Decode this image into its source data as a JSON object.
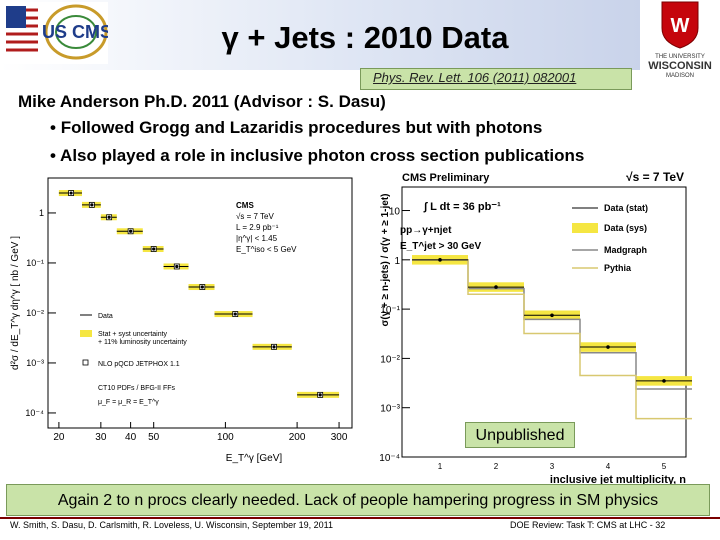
{
  "slide": {
    "title": "γ + Jets : 2010 Data",
    "reference": "Phys. Rev. Lett. 106 (2011) 082001",
    "author_line": "Mike Anderson Ph.D. 2011 (Advisor : S. Dasu)",
    "bullets": [
      "Followed Grogg and Lazaridis procedures but with photons",
      "Also played a role in inclusive photon cross section publications"
    ],
    "unpublished_label": "Unpublished",
    "conclusion": "Again 2 to n procs clearly needed. Lack of people hampering progress in SM physics",
    "footer_left": "W. Smith, S. Dasu, D. Carlsmith, R. Loveless, U. Wisconsin, September 19, 2011",
    "footer_right": "DOE Review: Task T: CMS at LHC - 32",
    "logos": {
      "cms_text": "US CMS",
      "uw_line1": "THE UNIVERSITY",
      "uw_line2": "WISCONSIN",
      "uw_line3": "MADISON"
    }
  },
  "chart_data": [
    {
      "type": "scatter",
      "xscale": "log",
      "yscale": "log",
      "xlabel": "E_T^γ [GeV]",
      "ylabel": "d²σ / dE_T^γ dη^γ [ nb / GeV ]",
      "xticks": [
        "20",
        "30",
        "40",
        "50",
        "100",
        "200",
        "300"
      ],
      "yticks": [
        "1",
        "10⁻¹",
        "10⁻²",
        "10⁻³",
        "10⁻⁴"
      ],
      "xlim": [
        18,
        340
      ],
      "ylim": [
        5e-05,
        5
      ],
      "annotations": [
        "CMS",
        "√s = 7 TeV",
        "L = 2.9 pb⁻¹",
        "|η^γ| < 1.45",
        "E_T^iso < 5 GeV"
      ],
      "legend": [
        "Data",
        "Stat + syst uncertainty",
        "+ 11% luminosity uncertainty",
        "NLO pQCD JETPHOX 1.1",
        "CT10 PDFs / BFG-II FFs",
        "μ_F = μ_R = E_T^γ"
      ],
      "series": [
        {
          "name": "Data",
          "x": [
            22.5,
            27.5,
            32.5,
            40,
            50,
            62.5,
            80,
            110,
            160,
            250
          ],
          "y": [
            2.5,
            1.45,
            0.82,
            0.43,
            0.19,
            0.085,
            0.033,
            0.0095,
            0.0021,
            0.00023
          ],
          "xerr": [
            2.5,
            2.5,
            2.5,
            5,
            5,
            7.5,
            10,
            20,
            30,
            50
          ]
        }
      ]
    },
    {
      "type": "bar",
      "yscale": "log",
      "xlabel": "inclusive jet multiplicity, n",
      "ylabel": "σ(γ + ≥ n-jets) / σ(γ + ≥ 1-jet)",
      "title": "CMS Preliminary",
      "annotations": [
        "√s = 7 TeV",
        "∫ L dt = 36 pb⁻¹",
        "pp→γ+njet",
        "E_T^jet > 30 GeV"
      ],
      "categories": [
        "1",
        "2",
        "3",
        "4",
        "5"
      ],
      "yticks": [
        "10⁻⁴",
        "10⁻³",
        "10⁻²",
        "10⁻¹",
        "1",
        "10"
      ],
      "ylim": [
        0.0001,
        30
      ],
      "series": [
        {
          "name": "Data (stat)",
          "values": [
            1.0,
            0.28,
            0.075,
            0.017,
            0.0035
          ]
        },
        {
          "name": "Data (sys)",
          "values": [
            1.0,
            0.28,
            0.075,
            0.017,
            0.0035
          ]
        },
        {
          "name": "Madgraph",
          "values": [
            1.0,
            0.26,
            0.062,
            0.013,
            0.0024
          ]
        },
        {
          "name": "Pythia",
          "values": [
            1.0,
            0.2,
            0.032,
            0.0045,
            0.0006
          ]
        }
      ],
      "colors": {
        "data": "#000000",
        "sys": "#f5e642",
        "madgraph": "#888888",
        "pythia": "#d8c870"
      }
    }
  ]
}
